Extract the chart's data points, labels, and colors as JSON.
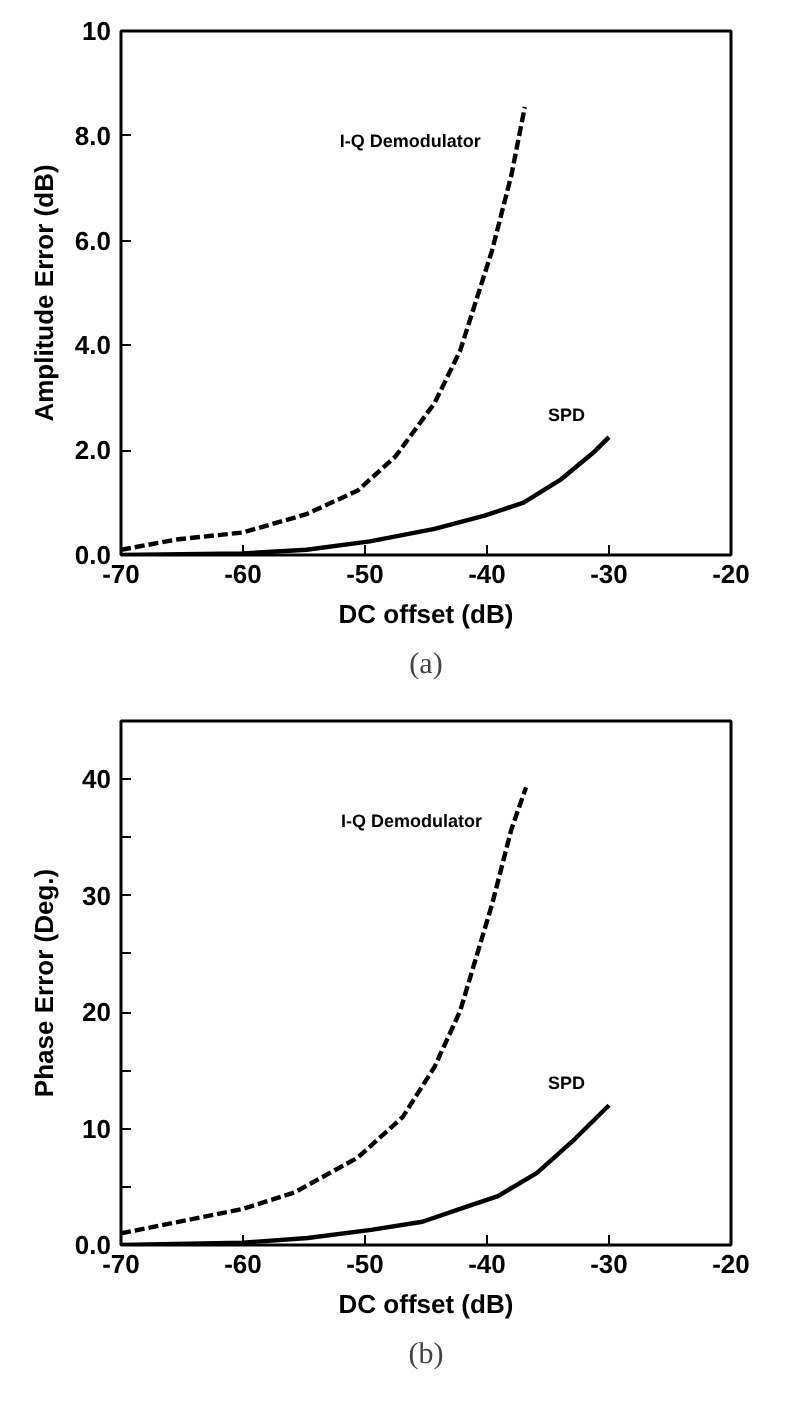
{
  "chart_data": [
    {
      "type": "line",
      "xlabel": "DC offset (dB)",
      "ylabel": "Amplitude Error (dB)",
      "xlim": [
        -70,
        -20
      ],
      "ylim": [
        0,
        10
      ],
      "xticks": [
        -70,
        -60,
        -50,
        -40,
        -30,
        -20
      ],
      "yticks": [
        {
          "value": 0,
          "label": "0.0"
        },
        {
          "value": 2,
          "label": "2.0"
        },
        {
          "value": 4,
          "label": "4.0"
        },
        {
          "value": 6,
          "label": "6.0"
        },
        {
          "value": 8,
          "label": "8.0"
        },
        10
      ],
      "grid": false,
      "marker": "none",
      "series": [
        {
          "name": "I-Q Demodulator",
          "color": "#000000",
          "line_style": "dashed",
          "x": [
            -70,
            -65.3,
            -60,
            -54.8,
            -50.6,
            -47.5,
            -44.3,
            -42.2,
            -39.6,
            -38,
            -36.9
          ],
          "values": [
            0.1,
            0.3,
            0.43,
            0.78,
            1.23,
            1.88,
            2.9,
            3.9,
            5.8,
            7.25,
            8.55
          ]
        },
        {
          "name": "SPD",
          "color": "#000000",
          "line_style": "solid",
          "x": [
            -70,
            -60,
            -54.8,
            -49.6,
            -44.3,
            -40.2,
            -37,
            -33.9,
            -31.3,
            -30
          ],
          "values": [
            0.0,
            0.03,
            0.1,
            0.26,
            0.5,
            0.75,
            1.0,
            1.45,
            1.95,
            2.25
          ]
        }
      ],
      "annotations": [
        "(a)"
      ]
    },
    {
      "type": "line",
      "xlabel": "DC offset (dB)",
      "ylabel": "Phase Error (Deg.)",
      "xlim": [
        -70,
        -20
      ],
      "ylim": [
        0,
        45
      ],
      "xticks": [
        -70,
        -60,
        -50,
        -40,
        -30,
        -20
      ],
      "yticks": [
        {
          "value": 0,
          "label": "0.0"
        },
        {
          "value": 5,
          "label": null
        },
        10,
        {
          "value": 15,
          "label": null
        },
        20,
        {
          "value": 25,
          "label": null
        },
        30,
        {
          "value": 35,
          "label": null
        },
        40
      ],
      "grid": false,
      "marker": "none",
      "series": [
        {
          "name": "I-Q Demodulator",
          "color": "#000000",
          "line_style": "dashed",
          "x": [
            -70,
            -65.2,
            -60,
            -55.8,
            -50.6,
            -46.9,
            -44.3,
            -42.2,
            -39.6,
            -38,
            -36.8
          ],
          "values": [
            1.0,
            2.0,
            3.1,
            4.5,
            7.5,
            11,
            15.3,
            20.1,
            29.2,
            35.7,
            39.3
          ]
        },
        {
          "name": "SPD",
          "color": "#000000",
          "line_style": "solid",
          "x": [
            -70,
            -60,
            -54.7,
            -49.5,
            -45.3,
            -42.2,
            -39.1,
            -35.9,
            -32.8,
            -30
          ],
          "values": [
            0,
            0.2,
            0.6,
            1.3,
            2.0,
            3.1,
            4.2,
            6.2,
            9.1,
            12
          ]
        }
      ],
      "annotations": [
        "(b)"
      ]
    }
  ]
}
